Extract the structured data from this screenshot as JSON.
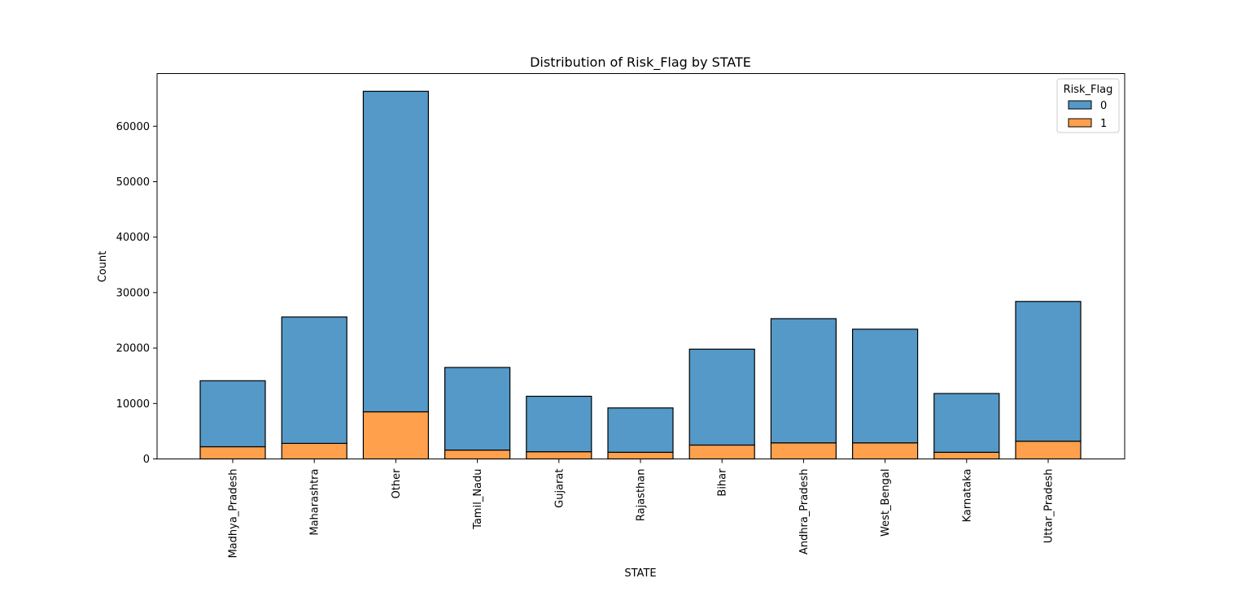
{
  "chart_data": {
    "type": "bar",
    "stacked": true,
    "title": "Distribution of Risk_Flag by STATE",
    "xlabel": "STATE",
    "ylabel": "Count",
    "ylim": [
      0,
      69500
    ],
    "yticks": [
      0,
      10000,
      20000,
      30000,
      40000,
      50000,
      60000
    ],
    "categories": [
      "Madhya_Pradesh",
      "Maharashtra",
      "Other",
      "Tamil_Nadu",
      "Gujarat",
      "Rajasthan",
      "Bihar",
      "Andhra_Pradesh",
      "West_Bengal",
      "Karnataka",
      "Uttar_Pradesh"
    ],
    "series": [
      {
        "name": "0",
        "color": "#5499c7",
        "values": [
          11900,
          22800,
          57800,
          14900,
          10000,
          8000,
          17300,
          22400,
          20500,
          10600,
          25200
        ]
      },
      {
        "name": "1",
        "color": "#ffa04d",
        "values": [
          2200,
          2800,
          8500,
          1600,
          1300,
          1200,
          2500,
          2900,
          2900,
          1200,
          3200
        ]
      }
    ],
    "legend": {
      "title": "Risk_Flag",
      "placement": "top-right"
    },
    "grid": false
  }
}
